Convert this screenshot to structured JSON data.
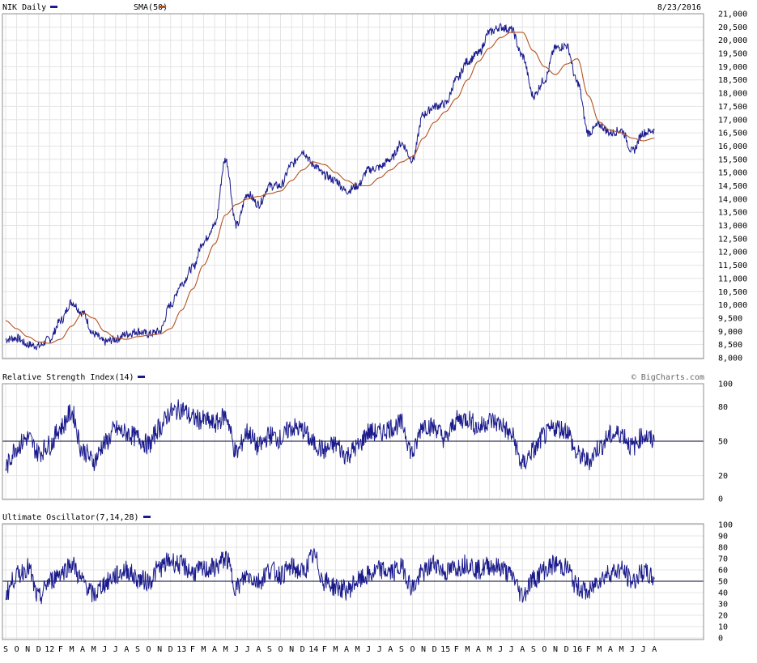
{
  "colors": {
    "price": "#1a1a8c",
    "sma": "#b5531f",
    "indicator": "#1a1a8c",
    "grid": "#e4e4e4",
    "frame": "#8f8f8f"
  },
  "chart_data": [
    {
      "type": "line",
      "panel": "price",
      "labels": {
        "series": "NIK Daily",
        "overlay": "SMA(50)",
        "date": "8/23/2016"
      },
      "ylim": [
        8000,
        21000
      ],
      "yticks": [
        8000,
        8500,
        9000,
        9500,
        10000,
        10500,
        11000,
        11500,
        12000,
        12500,
        13000,
        13500,
        14000,
        14500,
        15000,
        15500,
        16000,
        16500,
        17000,
        17500,
        18000,
        18500,
        19000,
        19500,
        20000,
        20500,
        21000
      ],
      "ytick_labels": [
        "8,000",
        "8,500",
        "9,000",
        "9,500",
        "10,000",
        "10,500",
        "11,000",
        "11,500",
        "12,000",
        "12,500",
        "13,000",
        "13,500",
        "14,000",
        "14,500",
        "15,000",
        "15,500",
        "16,000",
        "16,500",
        "17,000",
        "17,500",
        "18,000",
        "18,500",
        "19,000",
        "19,500",
        "20,000",
        "20,500",
        "21,000"
      ],
      "grid": true,
      "x": [
        "2011-09",
        "2011-10",
        "2011-11",
        "2011-12",
        "2012-01",
        "2012-02",
        "2012-03",
        "2012-04",
        "2012-05",
        "2012-06",
        "2012-07",
        "2012-08",
        "2012-09",
        "2012-10",
        "2012-11",
        "2012-12",
        "2013-01",
        "2013-02",
        "2013-03",
        "2013-04",
        "2013-05",
        "2013-06",
        "2013-07",
        "2013-08",
        "2013-09",
        "2013-10",
        "2013-11",
        "2013-12",
        "2014-01",
        "2014-02",
        "2014-03",
        "2014-04",
        "2014-05",
        "2014-06",
        "2014-07",
        "2014-08",
        "2014-09",
        "2014-10",
        "2014-11",
        "2014-12",
        "2015-01",
        "2015-02",
        "2015-03",
        "2015-04",
        "2015-05",
        "2015-06",
        "2015-07",
        "2015-08",
        "2015-09",
        "2015-10",
        "2015-11",
        "2015-12",
        "2016-01",
        "2016-02",
        "2016-03",
        "2016-04",
        "2016-05",
        "2016-06",
        "2016-07",
        "2016-08"
      ],
      "series": [
        {
          "name": "NIK Daily",
          "values": [
            8700,
            8750,
            8500,
            8450,
            8700,
            9400,
            10100,
            9700,
            8900,
            8600,
            8700,
            8900,
            9000,
            8900,
            9000,
            10000,
            10800,
            11400,
            12400,
            13000,
            15500,
            13000,
            14200,
            13800,
            14500,
            14500,
            15300,
            15800,
            15300,
            14900,
            14700,
            14300,
            14500,
            15100,
            15200,
            15500,
            16100,
            15500,
            17200,
            17500,
            17600,
            18500,
            19200,
            19500,
            20300,
            20500,
            20400,
            19400,
            17900,
            18500,
            19700,
            19800,
            18400,
            16500,
            16800,
            16500,
            16600,
            15800,
            16500,
            16600
          ]
        },
        {
          "name": "SMA(50)",
          "values": [
            9400,
            9100,
            8800,
            8600,
            8550,
            8700,
            9200,
            9700,
            9500,
            9000,
            8750,
            8700,
            8800,
            8850,
            8900,
            9100,
            9800,
            10600,
            11500,
            12300,
            13400,
            13800,
            14000,
            14100,
            14200,
            14300,
            14700,
            15100,
            15400,
            15300,
            15000,
            14700,
            14500,
            14500,
            14800,
            15100,
            15400,
            15600,
            16300,
            16900,
            17300,
            17800,
            18500,
            19200,
            19700,
            20100,
            20300,
            20300,
            19600,
            19000,
            18700,
            19100,
            19300,
            17900,
            16900,
            16600,
            16500,
            16300,
            16200,
            16300
          ]
        }
      ]
    },
    {
      "type": "line",
      "panel": "rsi",
      "labels": {
        "series": "Relative Strength Index(14)",
        "credit": "© BigCharts.com"
      },
      "ylim": [
        0,
        100
      ],
      "yticks": [
        0,
        20,
        50,
        80,
        100
      ],
      "ytick_labels": [
        "0",
        "20",
        "50",
        "80",
        "100"
      ],
      "reference_line": 50,
      "series": [
        {
          "name": "Relative Strength Index(14)",
          "values": [
            28,
            45,
            53,
            40,
            47,
            62,
            75,
            42,
            33,
            48,
            60,
            57,
            53,
            47,
            62,
            75,
            78,
            70,
            68,
            65,
            72,
            40,
            58,
            45,
            55,
            52,
            62,
            60,
            48,
            42,
            47,
            38,
            45,
            58,
            57,
            62,
            65,
            40,
            65,
            62,
            52,
            68,
            70,
            62,
            68,
            65,
            55,
            30,
            42,
            55,
            62,
            60,
            38,
            33,
            45,
            55,
            57,
            45,
            55,
            50
          ]
        }
      ]
    },
    {
      "type": "line",
      "panel": "ultimate",
      "labels": {
        "series": "Ultimate Oscillator(7,14,28)"
      },
      "ylim": [
        0,
        100
      ],
      "yticks": [
        0,
        10,
        20,
        30,
        40,
        50,
        60,
        70,
        80,
        90,
        100
      ],
      "ytick_labels": [
        "0",
        "10",
        "20",
        "30",
        "40",
        "50",
        "60",
        "70",
        "80",
        "90",
        "100"
      ],
      "reference_line": 50,
      "series": [
        {
          "name": "Ultimate Oscillator(7,14,28)",
          "values": [
            40,
            55,
            62,
            35,
            50,
            58,
            65,
            50,
            38,
            48,
            55,
            60,
            52,
            50,
            62,
            68,
            64,
            58,
            60,
            62,
            70,
            45,
            55,
            50,
            60,
            56,
            62,
            58,
            72,
            50,
            45,
            42,
            50,
            55,
            60,
            58,
            62,
            45,
            58,
            66,
            58,
            62,
            66,
            60,
            64,
            62,
            55,
            38,
            52,
            60,
            65,
            62,
            45,
            40,
            52,
            58,
            60,
            50,
            58,
            52
          ]
        }
      ]
    }
  ],
  "x_axis": {
    "tick_labels": [
      "S",
      "O",
      "N",
      "D",
      "12",
      "F",
      "M",
      "A",
      "M",
      "J",
      "J",
      "A",
      "S",
      "O",
      "N",
      "D",
      "13",
      "F",
      "M",
      "A",
      "M",
      "J",
      "J",
      "A",
      "S",
      "O",
      "N",
      "D",
      "14",
      "F",
      "M",
      "A",
      "M",
      "J",
      "J",
      "A",
      "S",
      "O",
      "N",
      "D",
      "15",
      "F",
      "M",
      "A",
      "M",
      "J",
      "J",
      "A",
      "S",
      "O",
      "N",
      "D",
      "16",
      "F",
      "M",
      "A",
      "M",
      "J",
      "J",
      "A"
    ]
  }
}
